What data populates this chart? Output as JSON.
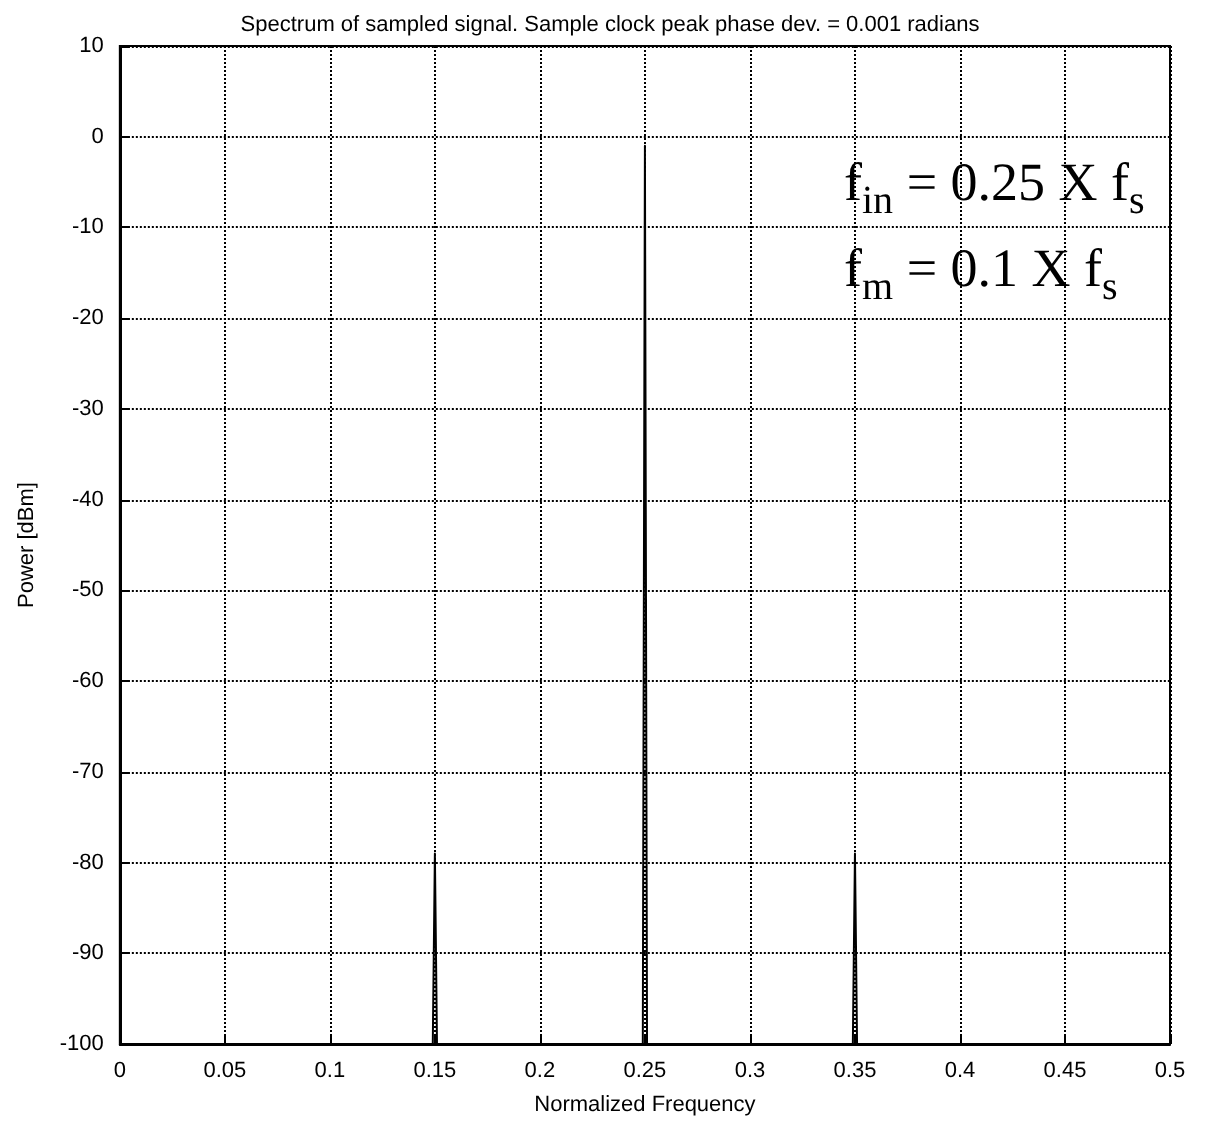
{
  "chart_data": {
    "type": "line",
    "title": "Spectrum of sampled signal. Sample clock peak phase dev. = 0.001 radians",
    "xlabel": "Normalized Frequency",
    "ylabel": "Power [dBm]",
    "series": [
      {
        "color": "#000000",
        "x": [
          0,
          0.149,
          0.15,
          0.151,
          0.249,
          0.25,
          0.251,
          0.349,
          0.35,
          0.351,
          0.5
        ],
        "values": [
          -100,
          -100,
          -79,
          -100,
          -100,
          -1,
          -100,
          -100,
          -79,
          -100,
          -100
        ]
      }
    ],
    "annotations": [
      "f$_{in}$ = 0.25 X f$_{s}$",
      "f$_{m}$ = 0.1 X f$_{s}$"
    ],
    "xlim": [
      0,
      0.5
    ],
    "xticks": [
      0,
      0.05,
      0.1,
      0.15,
      0.2,
      0.25,
      0.3,
      0.35,
      0.4,
      0.45,
      0.5
    ],
    "ylim": [
      -100,
      10
    ],
    "yticks": [
      -100,
      -90,
      -80,
      -70,
      -60,
      -50,
      -40,
      -30,
      -20,
      -10,
      0,
      10
    ],
    "grid": true,
    "marker": "none",
    "line_style": "solid"
  }
}
